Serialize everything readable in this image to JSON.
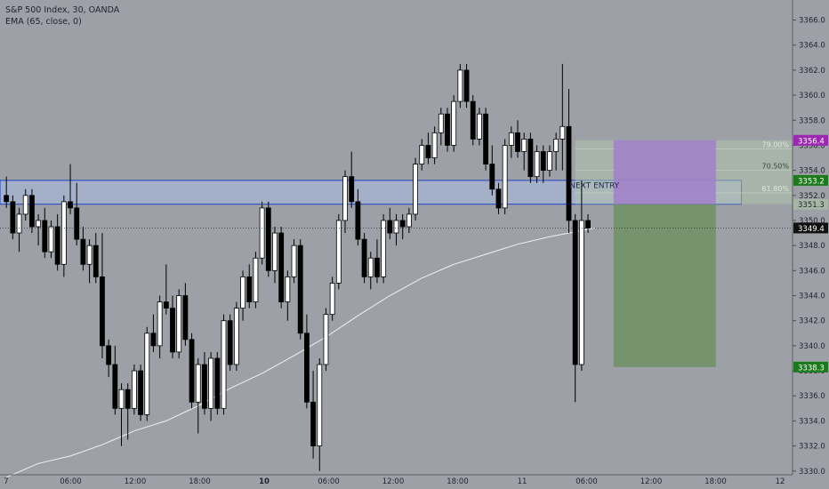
{
  "header": {
    "symbol": "S&P 500 Index, 30, OANDA",
    "indicator": "EMA (65, close, 0)"
  },
  "price_axis": {
    "ticks": [
      "3366.0",
      "3364.0",
      "3362.0",
      "3360.0",
      "3358.0",
      "3356.0",
      "3354.0",
      "3352.0",
      "3350.0",
      "3348.0",
      "3346.0",
      "3344.0",
      "3342.0",
      "3340.0",
      "3338.0",
      "3336.0",
      "3334.0",
      "3332.0",
      "3330.0"
    ],
    "badges": [
      {
        "label": "3356.4",
        "value": 3356.4,
        "color": "#9c27b0"
      },
      {
        "label": "3353.2",
        "value": 3353.2,
        "color": "#1b7a1b"
      },
      {
        "label": "3351.3",
        "value": 3351.3,
        "color": "#a6b7a6"
      },
      {
        "label": "3349.4",
        "value": 3349.4,
        "color": "#111111"
      },
      {
        "label": "3338.3",
        "value": 3338.3,
        "color": "#1b7a1b"
      }
    ]
  },
  "time_axis": {
    "ticks": [
      {
        "label": "7",
        "bold": false
      },
      {
        "label": "06:00",
        "bold": false
      },
      {
        "label": "12:00",
        "bold": false
      },
      {
        "label": "18:00",
        "bold": false
      },
      {
        "label": "10",
        "bold": true
      },
      {
        "label": "06:00",
        "bold": false
      },
      {
        "label": "12:00",
        "bold": false
      },
      {
        "label": "18:00",
        "bold": false
      },
      {
        "label": "11",
        "bold": false
      },
      {
        "label": "06:00",
        "bold": false
      },
      {
        "label": "12:00",
        "bold": false
      },
      {
        "label": "18:00",
        "bold": false
      },
      {
        "label": "12",
        "bold": false
      }
    ]
  },
  "annotations": {
    "next_entry": "NEXT ENTRY",
    "fib_levels": [
      {
        "label": "79.00%",
        "value": 3355.7
      },
      {
        "label": "70.50%",
        "value": 3354.0
      },
      {
        "label": "61.80%",
        "value": 3352.2
      }
    ]
  },
  "colors": {
    "background": "#9da0a6",
    "candle": "#000000",
    "ema": "#f2f2f2",
    "zone_fill": "#a9bbe0",
    "zone_border": "#1f3fc9",
    "stop_fill": "#a07fc9",
    "target_fill": "#6f9063",
    "fib_fill": "#b0c2ab"
  },
  "chart_data": {
    "type": "candlestick",
    "x_unit": "bar index (30-minute bars)",
    "ohlc": [
      [
        3352,
        3353.5,
        3351,
        3351.5
      ],
      [
        3351.5,
        3352,
        3348.5,
        3349
      ],
      [
        3349,
        3351,
        3347.5,
        3350.5
      ],
      [
        3350.5,
        3352.5,
        3350,
        3352
      ],
      [
        3352,
        3352.5,
        3349,
        3349.5
      ],
      [
        3349.5,
        3350.5,
        3348,
        3350
      ],
      [
        3350,
        3351,
        3347,
        3347.5
      ],
      [
        3347.5,
        3350,
        3347,
        3349.5
      ],
      [
        3349.5,
        3350.5,
        3346,
        3346.5
      ],
      [
        3346.5,
        3352,
        3345.5,
        3351.5
      ],
      [
        3351.5,
        3354.5,
        3350.5,
        3351
      ],
      [
        3351,
        3353,
        3348,
        3348.5
      ],
      [
        3348.5,
        3349.5,
        3346,
        3346.5
      ],
      [
        3346.5,
        3348.5,
        3345,
        3348
      ],
      [
        3348,
        3349,
        3345,
        3345.5
      ],
      [
        3345.5,
        3349,
        3339,
        3340
      ],
      [
        3340,
        3340.5,
        3337.5,
        3338.5
      ],
      [
        3338.5,
        3340,
        3334.5,
        3335
      ],
      [
        3335,
        3337,
        3332,
        3336.5
      ],
      [
        3336.5,
        3337,
        3332.5,
        3335
      ],
      [
        3335,
        3338.5,
        3334.5,
        3338
      ],
      [
        3338,
        3338.5,
        3334,
        3334.5
      ],
      [
        3334.5,
        3341.5,
        3334,
        3341
      ],
      [
        3341,
        3342.5,
        3339.5,
        3340
      ],
      [
        3340,
        3344,
        3339,
        3343.5
      ],
      [
        3343.5,
        3346.5,
        3342.5,
        3343
      ],
      [
        3343,
        3344,
        3339,
        3339.5
      ],
      [
        3339.5,
        3344.5,
        3339,
        3344
      ],
      [
        3344,
        3345,
        3340,
        3340.5
      ],
      [
        3340.5,
        3341,
        3335,
        3335.5
      ],
      [
        3335.5,
        3339,
        3333,
        3338.5
      ],
      [
        3338.5,
        3339.5,
        3334.5,
        3335
      ],
      [
        3335,
        3339.5,
        3334,
        3339
      ],
      [
        3339,
        3339.5,
        3334.5,
        3335
      ],
      [
        3335,
        3342.5,
        3334.5,
        3342
      ],
      [
        3342,
        3342.5,
        3338,
        3338.5
      ],
      [
        3338.5,
        3343.5,
        3338,
        3343
      ],
      [
        3343,
        3346,
        3342,
        3345.5
      ],
      [
        3345.5,
        3346.5,
        3343,
        3343.5
      ],
      [
        3343.5,
        3347.5,
        3343,
        3347
      ],
      [
        3347,
        3351.5,
        3346.5,
        3351
      ],
      [
        3351,
        3351.5,
        3345.5,
        3346
      ],
      [
        3346,
        3349.5,
        3345,
        3349
      ],
      [
        3349,
        3349.5,
        3343,
        3343.5
      ],
      [
        3343.5,
        3346,
        3342,
        3345.5
      ],
      [
        3345.5,
        3348.5,
        3345,
        3348
      ],
      [
        3348,
        3348.5,
        3340.5,
        3341
      ],
      [
        3341,
        3342.5,
        3335,
        3335.5
      ],
      [
        3335.5,
        3338,
        3331,
        3332
      ],
      [
        3332,
        3339,
        3330,
        3338.5
      ],
      [
        3338.5,
        3343,
        3338,
        3342.5
      ],
      [
        3342.5,
        3345.5,
        3342,
        3345
      ],
      [
        3345,
        3350.5,
        3344.5,
        3350
      ],
      [
        3350,
        3354,
        3349,
        3353.5
      ],
      [
        3353.5,
        3355.5,
        3351,
        3351.5
      ],
      [
        3351.5,
        3352.5,
        3348,
        3348.5
      ],
      [
        3348.5,
        3349,
        3345,
        3345.5
      ],
      [
        3345.5,
        3347.5,
        3344.5,
        3347
      ],
      [
        3347,
        3348.5,
        3345,
        3345.5
      ],
      [
        3345.5,
        3350.5,
        3345,
        3350
      ],
      [
        3350,
        3351,
        3348.5,
        3349
      ],
      [
        3349,
        3350.5,
        3348,
        3350
      ],
      [
        3350,
        3350.5,
        3348.5,
        3349.5
      ],
      [
        3349.5,
        3351,
        3349,
        3350.5
      ],
      [
        3350.5,
        3355,
        3350,
        3354.5
      ],
      [
        3354.5,
        3356.5,
        3354,
        3356
      ],
      [
        3356,
        3357,
        3354.5,
        3355
      ],
      [
        3355,
        3357.5,
        3354.5,
        3357
      ],
      [
        3357,
        3359,
        3356,
        3358.5
      ],
      [
        3358.5,
        3359,
        3355.5,
        3356
      ],
      [
        3356,
        3360,
        3355.5,
        3359.5
      ],
      [
        3359.5,
        3362.5,
        3359,
        3362
      ],
      [
        3362,
        3362.5,
        3359,
        3359.5
      ],
      [
        3359.5,
        3360,
        3356,
        3356.5
      ],
      [
        3356.5,
        3359,
        3356,
        3358.5
      ],
      [
        3358.5,
        3359,
        3354,
        3354.5
      ],
      [
        3354.5,
        3356,
        3352,
        3352.5
      ],
      [
        3352.5,
        3353,
        3350.5,
        3351
      ],
      [
        3351,
        3356.5,
        3350.5,
        3356
      ],
      [
        3356,
        3357.5,
        3355,
        3357
      ],
      [
        3357,
        3358,
        3355,
        3355.5
      ],
      [
        3355.5,
        3357,
        3354,
        3356.5
      ],
      [
        3356.5,
        3357,
        3353,
        3353.5
      ],
      [
        3353.5,
        3356,
        3353,
        3355.5
      ],
      [
        3355.5,
        3356,
        3353,
        3354
      ],
      [
        3354,
        3356,
        3353.5,
        3355.5
      ],
      [
        3355.5,
        3357,
        3354,
        3356.5
      ],
      [
        3356.5,
        3362.5,
        3354,
        3357.5
      ],
      [
        3357.5,
        3360.5,
        3349,
        3350
      ],
      [
        3350,
        3350.5,
        3335.5,
        3338.5
      ],
      [
        3338.5,
        3353.2,
        3338,
        3350
      ],
      [
        3350,
        3350.5,
        3349,
        3349.4
      ]
    ],
    "ema": [
      [
        0,
        3329.5
      ],
      [
        5,
        3330.6
      ],
      [
        10,
        3331.2
      ],
      [
        15,
        3332.1
      ],
      [
        20,
        3333.2
      ],
      [
        25,
        3334.0
      ],
      [
        30,
        3335.2
      ],
      [
        35,
        3336.6
      ],
      [
        40,
        3337.8
      ],
      [
        45,
        3339.2
      ],
      [
        50,
        3340.7
      ],
      [
        55,
        3342.4
      ],
      [
        60,
        3344.0
      ],
      [
        65,
        3345.4
      ],
      [
        70,
        3346.5
      ],
      [
        75,
        3347.3
      ],
      [
        80,
        3348.1
      ],
      [
        85,
        3348.7
      ],
      [
        89,
        3349.1
      ],
      [
        92,
        3349.4
      ]
    ],
    "y_range": [
      3329.7,
      3367.6
    ],
    "x_range": [
      -1,
      123
    ],
    "zone": {
      "x0": -1,
      "x1": 115,
      "y0": 3353.2,
      "y1": 3351.3
    },
    "short_position": {
      "x0": 95,
      "x1": 111,
      "entry": 3351.3,
      "stop": 3356.4,
      "target": 3338.3
    },
    "fib_box": {
      "x0": 89,
      "x1": 123,
      "y0": 3356.4,
      "y1": 3351.3
    },
    "last_price": 3349.4
  }
}
